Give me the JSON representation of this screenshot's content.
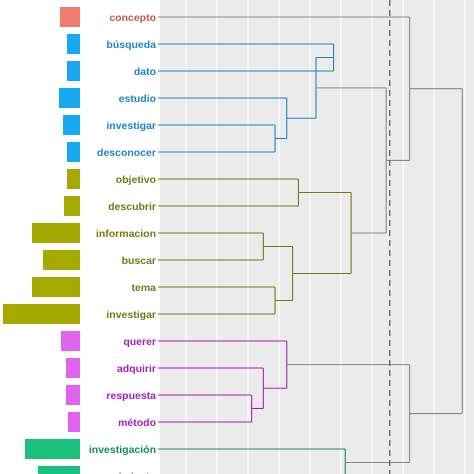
{
  "chart_data": {
    "type": "dendrogram",
    "leaves": [
      {
        "label": "concepto",
        "cluster": 0,
        "bar": 20
      },
      {
        "label": "búsqueda",
        "cluster": 1,
        "bar": 13
      },
      {
        "label": "dato",
        "cluster": 1,
        "bar": 13
      },
      {
        "label": "estudio",
        "cluster": 1,
        "bar": 21
      },
      {
        "label": "investigar",
        "cluster": 1,
        "bar": 17
      },
      {
        "label": "desconocer",
        "cluster": 1,
        "bar": 13
      },
      {
        "label": "objetivo",
        "cluster": 2,
        "bar": 13
      },
      {
        "label": "descubrir",
        "cluster": 2,
        "bar": 16
      },
      {
        "label": "informacion",
        "cluster": 2,
        "bar": 48
      },
      {
        "label": "buscar",
        "cluster": 2,
        "bar": 37
      },
      {
        "label": "tema",
        "cluster": 2,
        "bar": 48
      },
      {
        "label": "investigar",
        "cluster": 2,
        "bar": 77
      },
      {
        "label": "querer",
        "cluster": 3,
        "bar": 19
      },
      {
        "label": "adquirir",
        "cluster": 3,
        "bar": 14
      },
      {
        "label": "respuesta",
        "cluster": 3,
        "bar": 14
      },
      {
        "label": "método",
        "cluster": 3,
        "bar": 12
      },
      {
        "label": "investigación",
        "cluster": 4,
        "bar": 55
      },
      {
        "label": "conocimiento",
        "cluster": 4,
        "bar": 42
      }
    ],
    "clusters": [
      {
        "color": "#c05a4e",
        "bar_color": "#f07b6d"
      },
      {
        "color": "#1f86c0",
        "bar_color": "#18aaee"
      },
      {
        "color": "#757a12",
        "bar_color": "#a6aa00"
      },
      {
        "color": "#a51fbf",
        "bar_color": "#e062ee"
      },
      {
        "color": "#178d5f",
        "bar_color": "#1bc07d"
      }
    ],
    "merges": [
      {
        "id": "m1",
        "children": [
          "L1",
          "L2"
        ],
        "height": 1.5
      },
      {
        "id": "m2",
        "children": [
          "L4",
          "L5"
        ],
        "height": 1.0
      },
      {
        "id": "m3",
        "children": [
          "L3",
          "m2"
        ],
        "height": 1.1
      },
      {
        "id": "m4",
        "children": [
          "m1",
          "m3"
        ],
        "height": 1.35
      },
      {
        "id": "m5",
        "children": [
          "L6",
          "L7"
        ],
        "height": 1.2
      },
      {
        "id": "m6",
        "children": [
          "L8",
          "L9"
        ],
        "height": 0.9
      },
      {
        "id": "m7",
        "children": [
          "L10",
          "L11"
        ],
        "height": 1.0
      },
      {
        "id": "m8",
        "children": [
          "m6",
          "m7"
        ],
        "height": 1.15
      },
      {
        "id": "m9",
        "children": [
          "m5",
          "m8"
        ],
        "height": 1.65
      },
      {
        "id": "m10",
        "children": [
          "m4",
          "m9"
        ],
        "height": 1.95
      },
      {
        "id": "m11",
        "children": [
          "L14",
          "L15"
        ],
        "height": 0.8
      },
      {
        "id": "m12",
        "children": [
          "L13",
          "m11"
        ],
        "height": 0.9
      },
      {
        "id": "m13",
        "children": [
          "L12",
          "m12"
        ],
        "height": 1.1
      },
      {
        "id": "m14",
        "children": [
          "L16",
          "L17"
        ],
        "height": 1.6
      },
      {
        "id": "m15",
        "children": [
          "m13",
          "m14"
        ],
        "height": 2.15
      },
      {
        "id": "m16",
        "children": [
          "L0",
          "m10"
        ],
        "height": 2.15
      },
      {
        "id": "m17",
        "children": [
          "m16",
          "m15"
        ],
        "height": 2.6
      }
    ],
    "height_range": [
      0,
      2.7
    ],
    "cut_height": 1.98,
    "grid": true
  }
}
